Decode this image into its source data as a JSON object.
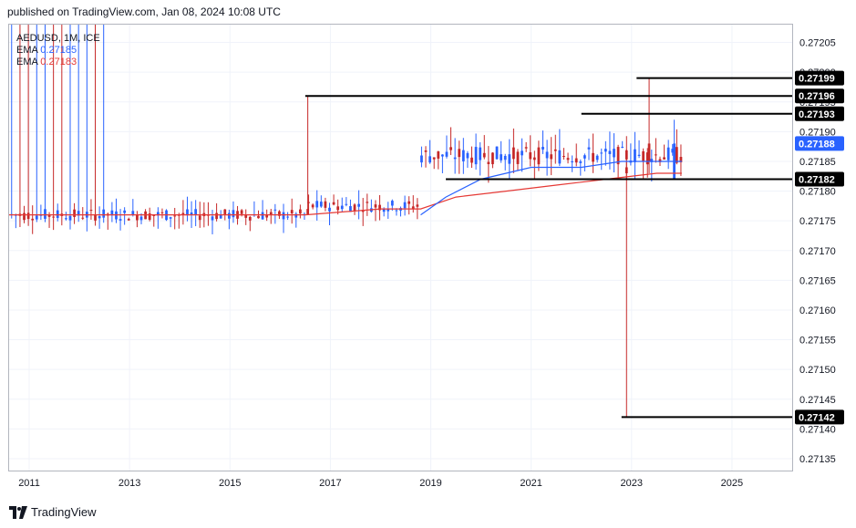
{
  "header": {
    "published_text": "published on TradingView.com, Jan 08, 2024 10:08 UTC"
  },
  "legend": {
    "symbol_text": "AEDUSD, 1M, ICE",
    "ema_blue": {
      "label": "EMA",
      "value": "0.27185",
      "color": "#2962ff"
    },
    "ema_red": {
      "label": "EMA",
      "value": "0.27183",
      "color": "#e53935"
    }
  },
  "footer": {
    "brand": "TradingView"
  },
  "chart_data": {
    "type": "candlestick",
    "title": "AEDUSD, 1M, ICE",
    "ylim": [
      0.27133,
      0.27208
    ],
    "y_ticks": [
      "0.27205",
      "0.27200",
      "0.27195",
      "0.27190",
      "0.27185",
      "0.27180",
      "0.27175",
      "0.27170",
      "0.27165",
      "0.27160",
      "0.27155",
      "0.27150",
      "0.27145",
      "0.27140",
      "0.27135"
    ],
    "x_range": [
      2010.6,
      2026.2
    ],
    "x_ticks": [
      {
        "year": 2011,
        "label": "2011"
      },
      {
        "year": 2013,
        "label": "2013"
      },
      {
        "year": 2015,
        "label": "2015"
      },
      {
        "year": 2017,
        "label": "2017"
      },
      {
        "year": 2019,
        "label": "2019"
      },
      {
        "year": 2021,
        "label": "2021"
      },
      {
        "year": 2023,
        "label": "2023"
      },
      {
        "year": 2025,
        "label": "2025"
      }
    ],
    "horizontal_levels": [
      {
        "value": 0.27199,
        "label": "0.27199",
        "from": 2023.1
      },
      {
        "value": 0.27196,
        "label": "0.27196",
        "from": 2016.5
      },
      {
        "value": 0.27193,
        "label": "0.27193",
        "from": 2022.0
      },
      {
        "value": 0.27182,
        "label": "0.27182",
        "from": 2019.3
      },
      {
        "value": 0.27142,
        "label": "0.27142",
        "from": 2022.8
      }
    ],
    "current_price": {
      "value": 0.27188,
      "label": "0.27188",
      "color": "#2962ff"
    },
    "ema_blue_points": [
      [
        2018.8,
        0.27176
      ],
      [
        2019.3,
        0.27179
      ],
      [
        2020.0,
        0.27182
      ],
      [
        2021.0,
        0.27184
      ],
      [
        2022.0,
        0.27184
      ],
      [
        2022.8,
        0.27185
      ],
      [
        2023.5,
        0.27185
      ],
      [
        2024.0,
        0.27185
      ]
    ],
    "ema_red_points": [
      [
        2010.6,
        0.27176
      ],
      [
        2012.5,
        0.27176
      ],
      [
        2014.5,
        0.27176
      ],
      [
        2016.5,
        0.27176
      ],
      [
        2018.0,
        0.27177
      ],
      [
        2018.8,
        0.27177
      ],
      [
        2019.5,
        0.27179
      ],
      [
        2020.5,
        0.2718
      ],
      [
        2021.5,
        0.27181
      ],
      [
        2022.5,
        0.27182
      ],
      [
        2023.5,
        0.27183
      ],
      [
        2024.0,
        0.27183
      ]
    ],
    "notable_candles": [
      {
        "t": 2016.55,
        "open": 0.27177,
        "close": 0.27176,
        "high": 0.27196,
        "low": 0.27176
      },
      {
        "t": 2022.9,
        "open": 0.27184,
        "close": 0.27183,
        "high": 0.27187,
        "low": 0.27142
      },
      {
        "t": 2023.35,
        "open": 0.27188,
        "close": 0.27185,
        "high": 0.27199,
        "low": 0.27183
      },
      {
        "t": 2023.85,
        "open": 0.27182,
        "close": 0.27188,
        "high": 0.27192,
        "low": 0.27182
      }
    ],
    "up_color": "#2962ff",
    "down_color": "#c62828"
  }
}
